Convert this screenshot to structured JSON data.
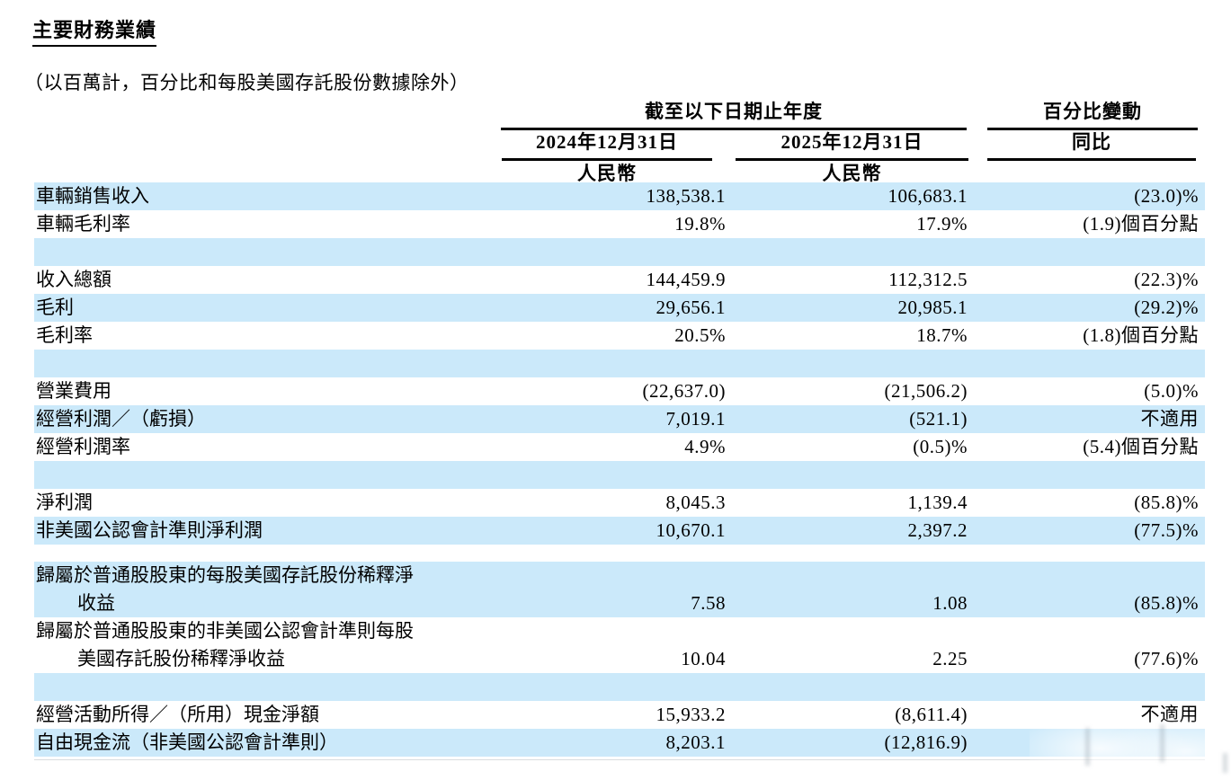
{
  "page": {
    "title": "主要財務業績",
    "subtitle": "（以百萬計，百分比和每股美國存託股份數據除外）"
  },
  "colors": {
    "row_highlight": "#cbe9fa",
    "text": "#000000"
  },
  "table": {
    "period_group_header": "截至以下日期止年度",
    "change_group_header": "百分比變動",
    "col_2024_header": "2024年12月31日",
    "col_2025_header": "2025年12月31日",
    "yoy_header": "同比",
    "currency_2024": "人民幣",
    "currency_2025": "人民幣",
    "rows": [
      {
        "label": "車輛銷售收入",
        "v2024": "138,538.1",
        "v2025": "106,683.1",
        "yoy": "(23.0)%",
        "highlight": true
      },
      {
        "label": "車輛毛利率",
        "v2024": "19.8%",
        "v2025": "17.9%",
        "yoy": "(1.9)個百分點",
        "highlight": false
      },
      {
        "type": "spacer",
        "highlight": true
      },
      {
        "label": "收入總額",
        "v2024": "144,459.9",
        "v2025": "112,312.5",
        "yoy": "(22.3)%",
        "highlight": false
      },
      {
        "label": "毛利",
        "v2024": "29,656.1",
        "v2025": "20,985.1",
        "yoy": "(29.2)%",
        "highlight": true
      },
      {
        "label": "毛利率",
        "v2024": "20.5%",
        "v2025": "18.7%",
        "yoy": "(1.8)個百分點",
        "highlight": false
      },
      {
        "type": "spacer",
        "highlight": true
      },
      {
        "label": "營業費用",
        "v2024": "(22,637.0)",
        "v2025": "(21,506.2)",
        "yoy": "(5.0)%",
        "highlight": false
      },
      {
        "label": "經營利潤／（虧損）",
        "v2024": "7,019.1",
        "v2025": "(521.1)",
        "yoy": "不適用",
        "highlight": true
      },
      {
        "label": "經營利潤率",
        "v2024": "4.9%",
        "v2025": "(0.5)%",
        "yoy": "(5.4)個百分點",
        "highlight": false
      },
      {
        "type": "spacer",
        "highlight": true
      },
      {
        "label": "淨利潤",
        "v2024": "8,045.3",
        "v2025": "1,139.4",
        "yoy": "(85.8)%",
        "highlight": false
      },
      {
        "label": "非美國公認會計準則淨利潤",
        "v2024": "10,670.1",
        "v2025": "2,397.2",
        "yoy": "(77.5)%",
        "highlight": true
      },
      {
        "type": "spacer",
        "highlight": false,
        "height": 19
      },
      {
        "label": "歸屬於普通股股東的每股美國存託股份稀釋淨",
        "label_line2": "收益",
        "v2024": "7.58",
        "v2025": "1.08",
        "yoy": "(85.8)%",
        "highlight": true
      },
      {
        "label": "歸屬於普通股股東的非美國公認會計準則每股",
        "label_line2": "美國存託股份稀釋淨收益",
        "v2024": "10.04",
        "v2025": "2.25",
        "yoy": "(77.6)%",
        "highlight": false
      },
      {
        "type": "spacer",
        "highlight": true
      },
      {
        "label": "經營活動所得／（所用）現金淨額",
        "v2024": "15,933.2",
        "v2025": "(8,611.4)",
        "yoy": "不適用",
        "highlight": false
      },
      {
        "label": "自由現金流（非美國公認會計準則）",
        "v2024": "8,203.1",
        "v2025": "(12,816.9)",
        "yoy": "",
        "highlight": true
      }
    ]
  }
}
